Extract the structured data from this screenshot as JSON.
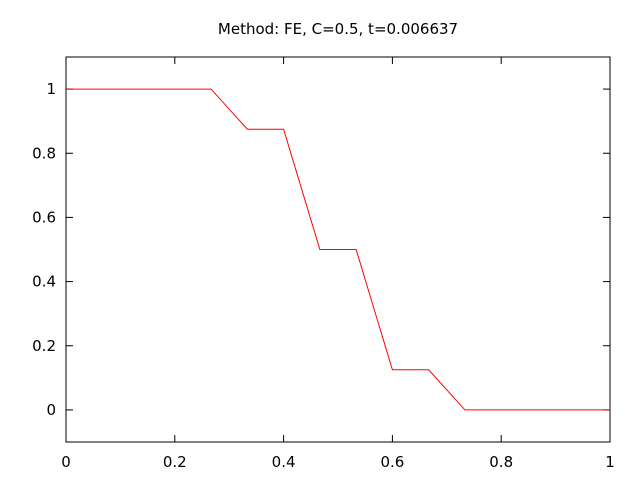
{
  "chart_data": {
    "type": "line",
    "title": "Method: FE, C=0.5, t=0.006637",
    "xlabel": "",
    "ylabel": "",
    "xlim": [
      0,
      1
    ],
    "ylim": [
      -0.1,
      1.1
    ],
    "grid": false,
    "x_ticks": [
      {
        "value": 0,
        "label": "0"
      },
      {
        "value": 0.2,
        "label": "0.2"
      },
      {
        "value": 0.4,
        "label": "0.4"
      },
      {
        "value": 0.6,
        "label": "0.6"
      },
      {
        "value": 0.8,
        "label": "0.8"
      },
      {
        "value": 1,
        "label": "1"
      }
    ],
    "y_ticks": [
      {
        "value": 0,
        "label": "0"
      },
      {
        "value": 0.2,
        "label": "0.2"
      },
      {
        "value": 0.4,
        "label": "0.4"
      },
      {
        "value": 0.6,
        "label": "0.6"
      },
      {
        "value": 0.8,
        "label": "0.8"
      },
      {
        "value": 1,
        "label": "1"
      }
    ],
    "series": [
      {
        "color": "#ff0000",
        "x": [
          0,
          0.0667,
          0.1333,
          0.2,
          0.2667,
          0.3333,
          0.4,
          0.4667,
          0.5333,
          0.6,
          0.6667,
          0.7333,
          0.8,
          0.8667,
          0.9333,
          1
        ],
        "y": [
          1,
          1,
          1,
          1,
          1,
          0.875,
          0.875,
          0.5,
          0.5,
          0.125,
          0.125,
          0,
          0,
          0,
          0,
          0
        ]
      }
    ]
  }
}
